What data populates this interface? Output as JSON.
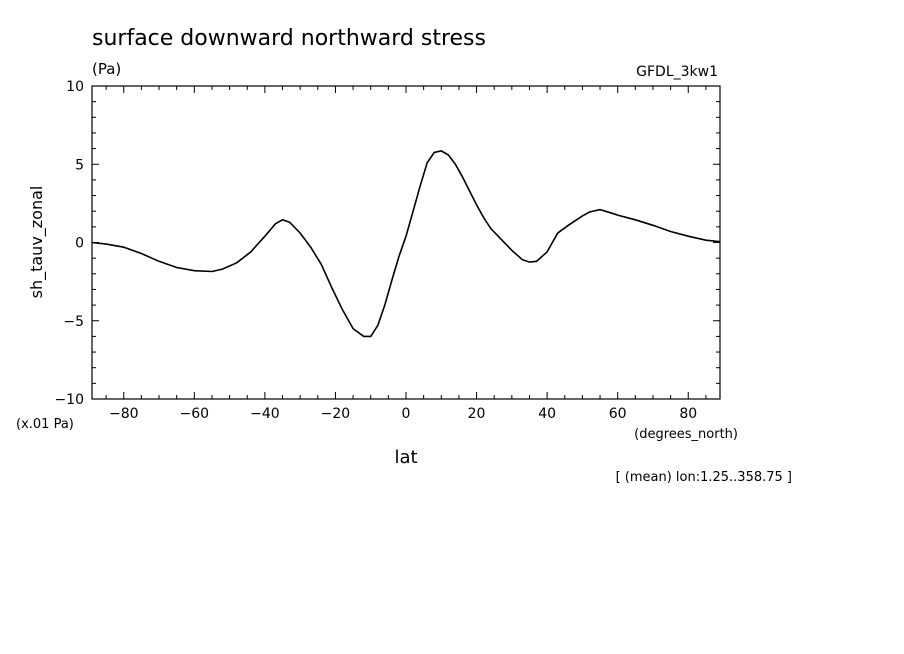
{
  "chart_data": {
    "type": "line",
    "title": "surface downward northward stress",
    "units_label": "(Pa)",
    "model_label": "GFDL_3kw1",
    "ylabel": "sh_tauv_zonal",
    "yscale_label": "(x.01 Pa)",
    "xlabel": "lat",
    "xunits_label": "(degrees_north)",
    "footnote": "[ (mean) lon:1.25..358.75 ]",
    "xlim": [
      -89,
      89
    ],
    "ylim": [
      -10,
      10
    ],
    "x_ticks": [
      -80,
      -60,
      -40,
      -20,
      0,
      20,
      40,
      60,
      80
    ],
    "y_ticks": [
      -10,
      -5,
      0,
      5,
      10
    ],
    "series": [
      {
        "x": [
          -89,
          -85,
          -80,
          -75,
          -70,
          -65,
          -60,
          -55,
          -52,
          -48,
          -44,
          -40,
          -37,
          -35,
          -33,
          -30,
          -27,
          -24,
          -21,
          -18,
          -15,
          -12,
          -10,
          -8,
          -6,
          -4,
          -2,
          0,
          2,
          4,
          6,
          8,
          10,
          12,
          14,
          16,
          18,
          20,
          22,
          24,
          27,
          30,
          33,
          35,
          37,
          40,
          43,
          46,
          50,
          52,
          55,
          58,
          60,
          65,
          70,
          75,
          80,
          85,
          89
        ],
        "values": [
          0,
          -0.1,
          -0.3,
          -0.7,
          -1.2,
          -1.6,
          -1.8,
          -1.85,
          -1.7,
          -1.3,
          -0.6,
          0.4,
          1.2,
          1.45,
          1.3,
          0.6,
          -0.3,
          -1.4,
          -2.9,
          -4.3,
          -5.5,
          -6.0,
          -6.0,
          -5.3,
          -4.0,
          -2.4,
          -0.9,
          0.4,
          2.0,
          3.6,
          5.1,
          5.75,
          5.85,
          5.6,
          5.0,
          4.2,
          3.3,
          2.4,
          1.6,
          0.9,
          0.2,
          -0.5,
          -1.1,
          -1.25,
          -1.2,
          -0.6,
          0.6,
          1.1,
          1.7,
          1.95,
          2.1,
          1.9,
          1.75,
          1.45,
          1.1,
          0.7,
          0.4,
          0.15,
          0.05
        ]
      }
    ]
  }
}
